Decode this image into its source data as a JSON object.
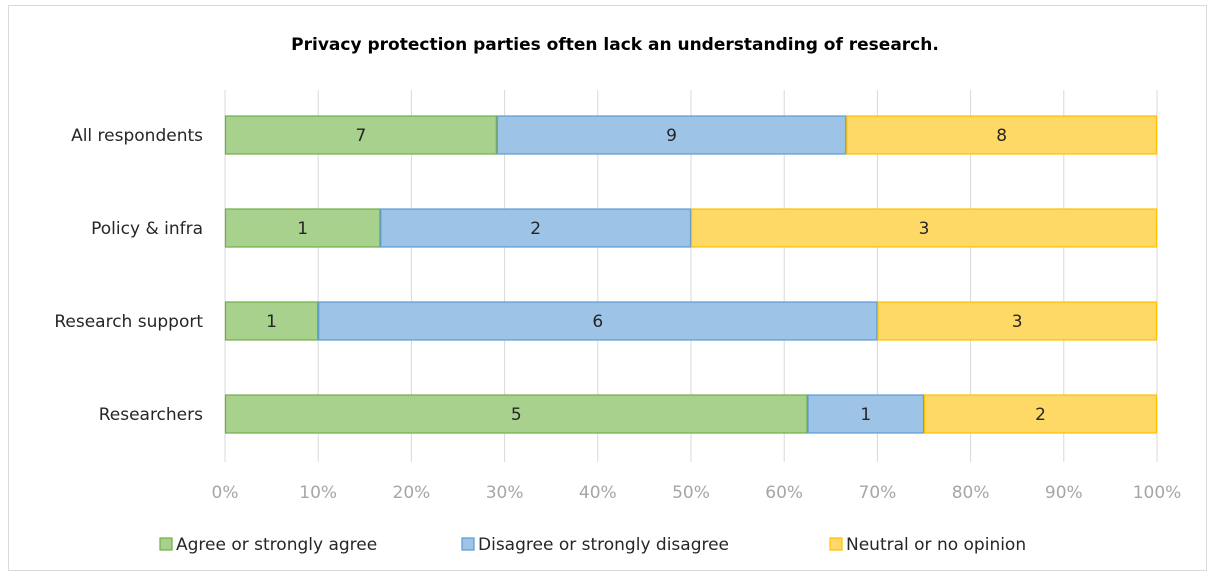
{
  "chart_data": {
    "type": "bar",
    "orientation": "horizontal",
    "stacked": "percent",
    "title": "Privacy protection parties often lack an understanding of research.",
    "categories": [
      "All respondents",
      "Policy & infra",
      "Research support",
      "Researchers"
    ],
    "series": [
      {
        "name": "Agree or strongly agree",
        "values": [
          7,
          1,
          1,
          5
        ],
        "color": "#a9d18e"
      },
      {
        "name": "Disagree or strongly disagree",
        "values": [
          9,
          2,
          6,
          1
        ],
        "color": "#9dc3e6"
      },
      {
        "name": "Neutral or no opinion",
        "values": [
          8,
          3,
          3,
          2
        ],
        "color": "#ffd966"
      }
    ],
    "edge_colors": [
      "#70ad47",
      "#5b9bd5",
      "#ffc000"
    ],
    "xlim": [
      0,
      100
    ],
    "x_ticks": [
      "0%",
      "10%",
      "20%",
      "30%",
      "40%",
      "50%",
      "60%",
      "70%",
      "80%",
      "90%",
      "100%"
    ],
    "grid": true,
    "legend_position": "bottom"
  }
}
